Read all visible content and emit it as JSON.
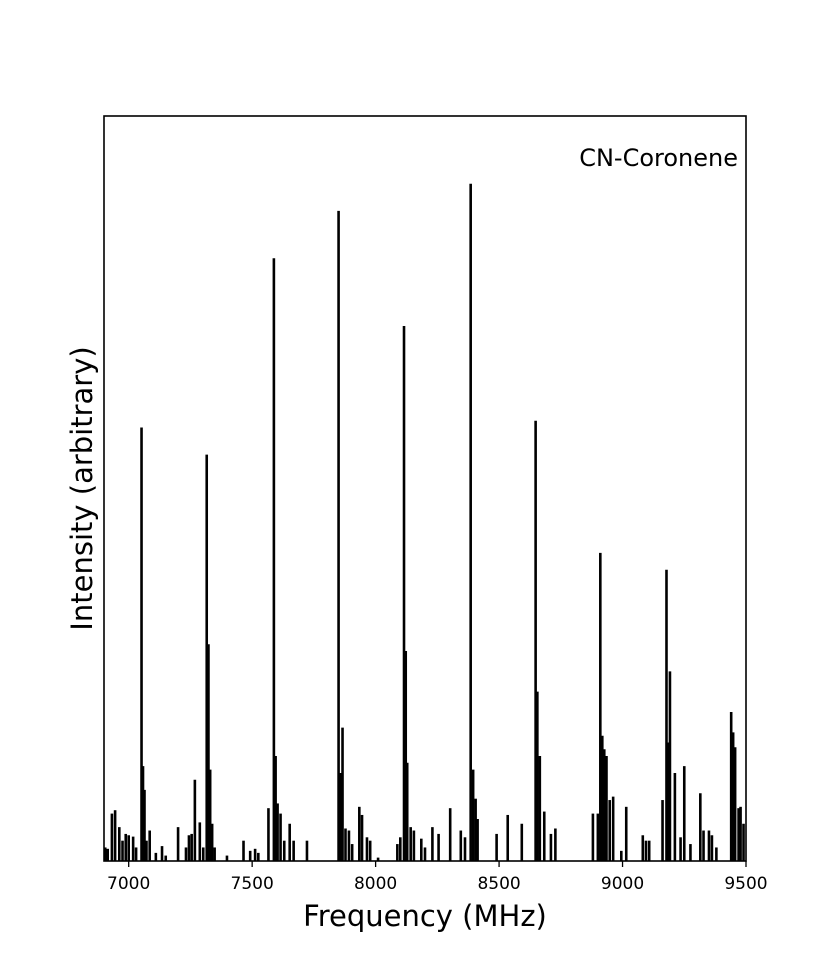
{
  "chart_data": {
    "type": "line",
    "title": "",
    "xlabel": "Frequency (MHz)",
    "ylabel": "Intensity (arbitrary)",
    "annotation": "CN-Coronene",
    "xlim": [
      6900,
      9500
    ],
    "ylim": [
      0,
      1.1
    ],
    "xticks": [
      7000,
      7500,
      8000,
      8500,
      9000,
      9500
    ],
    "show_yticks": false,
    "grid": false,
    "line_color": "#000000",
    "series": [
      {
        "sticks": [
          [
            6905,
            0.02
          ],
          [
            6915,
            0.018
          ],
          [
            6932,
            0.07
          ],
          [
            6945,
            0.075
          ],
          [
            6962,
            0.05
          ],
          [
            6975,
            0.03
          ],
          [
            6988,
            0.04
          ],
          [
            7000,
            0.038
          ],
          [
            7018,
            0.036
          ],
          [
            7030,
            0.02
          ],
          [
            7052,
            0.64
          ],
          [
            7058,
            0.14
          ],
          [
            7064,
            0.105
          ],
          [
            7072,
            0.03
          ],
          [
            7085,
            0.045
          ],
          [
            7110,
            0.012
          ],
          [
            7135,
            0.022
          ],
          [
            7150,
            0.008
          ],
          [
            7200,
            0.05
          ],
          [
            7232,
            0.02
          ],
          [
            7244,
            0.038
          ],
          [
            7255,
            0.04
          ],
          [
            7268,
            0.12
          ],
          [
            7288,
            0.057
          ],
          [
            7302,
            0.02
          ],
          [
            7316,
            0.6
          ],
          [
            7323,
            0.32
          ],
          [
            7330,
            0.135
          ],
          [
            7338,
            0.055
          ],
          [
            7348,
            0.02
          ],
          [
            7398,
            0.008
          ],
          [
            7465,
            0.03
          ],
          [
            7492,
            0.015
          ],
          [
            7512,
            0.018
          ],
          [
            7525,
            0.012
          ],
          [
            7566,
            0.078
          ],
          [
            7588,
            0.89
          ],
          [
            7595,
            0.155
          ],
          [
            7603,
            0.085
          ],
          [
            7615,
            0.07
          ],
          [
            7630,
            0.03
          ],
          [
            7652,
            0.055
          ],
          [
            7668,
            0.03
          ],
          [
            7722,
            0.03
          ],
          [
            7850,
            0.96
          ],
          [
            7858,
            0.13
          ],
          [
            7866,
            0.197
          ],
          [
            7878,
            0.048
          ],
          [
            7892,
            0.045
          ],
          [
            7905,
            0.025
          ],
          [
            7934,
            0.08
          ],
          [
            7945,
            0.068
          ],
          [
            7965,
            0.035
          ],
          [
            7978,
            0.03
          ],
          [
            8010,
            0.005
          ],
          [
            8088,
            0.025
          ],
          [
            8100,
            0.035
          ],
          [
            8115,
            0.79
          ],
          [
            8122,
            0.31
          ],
          [
            8128,
            0.145
          ],
          [
            8142,
            0.05
          ],
          [
            8155,
            0.045
          ],
          [
            8185,
            0.033
          ],
          [
            8200,
            0.02
          ],
          [
            8230,
            0.05
          ],
          [
            8255,
            0.04
          ],
          [
            8302,
            0.078
          ],
          [
            8345,
            0.045
          ],
          [
            8362,
            0.035
          ],
          [
            8385,
            1.0
          ],
          [
            8395,
            0.135
          ],
          [
            8405,
            0.092
          ],
          [
            8413,
            0.062
          ],
          [
            8490,
            0.04
          ],
          [
            8535,
            0.068
          ],
          [
            8592,
            0.055
          ],
          [
            8648,
            0.65
          ],
          [
            8655,
            0.25
          ],
          [
            8665,
            0.155
          ],
          [
            8683,
            0.073
          ],
          [
            8710,
            0.04
          ],
          [
            8728,
            0.048
          ],
          [
            8880,
            0.07
          ],
          [
            8900,
            0.07
          ],
          [
            8910,
            0.455
          ],
          [
            8918,
            0.185
          ],
          [
            8926,
            0.165
          ],
          [
            8935,
            0.155
          ],
          [
            8948,
            0.09
          ],
          [
            8962,
            0.095
          ],
          [
            8995,
            0.015
          ],
          [
            9015,
            0.08
          ],
          [
            9082,
            0.038
          ],
          [
            9095,
            0.03
          ],
          [
            9108,
            0.03
          ],
          [
            9162,
            0.09
          ],
          [
            9178,
            0.43
          ],
          [
            9185,
            0.175
          ],
          [
            9192,
            0.28
          ],
          [
            9212,
            0.13
          ],
          [
            9235,
            0.035
          ],
          [
            9250,
            0.14
          ],
          [
            9275,
            0.025
          ],
          [
            9315,
            0.1
          ],
          [
            9328,
            0.045
          ],
          [
            9350,
            0.045
          ],
          [
            9362,
            0.038
          ],
          [
            9380,
            0.02
          ],
          [
            9440,
            0.22
          ],
          [
            9448,
            0.19
          ],
          [
            9456,
            0.168
          ],
          [
            9470,
            0.078
          ],
          [
            9478,
            0.08
          ],
          [
            9490,
            0.055
          ]
        ]
      }
    ]
  }
}
